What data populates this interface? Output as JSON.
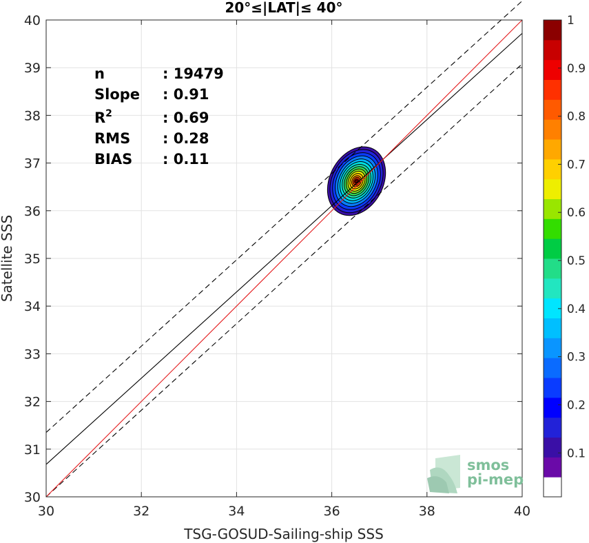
{
  "chart_data": {
    "type": "scatter",
    "title": "20°≤|LAT|≤ 40°",
    "xlabel": "TSG-GOSUD-Sailing-ship SSS",
    "ylabel": "Satellite SSS",
    "xlim": [
      30,
      40
    ],
    "ylim": [
      30,
      40
    ],
    "xticks": [
      "30",
      "32",
      "34",
      "36",
      "38",
      "40"
    ],
    "yticks": [
      "30",
      "31",
      "32",
      "33",
      "34",
      "35",
      "36",
      "37",
      "38",
      "39",
      "40"
    ],
    "grid": true,
    "stats": [
      {
        "label": "n",
        "value": ": 19479"
      },
      {
        "label": "Slope",
        "value": ": 0.91"
      },
      {
        "label": "R",
        "sup": "2",
        "value": ": 0.69"
      },
      {
        "label": "RMS",
        "value": ": 0.28"
      },
      {
        "label": "BIAS",
        "value": ": 0.11"
      }
    ],
    "lines": {
      "identity": {
        "x": [
          30,
          40
        ],
        "y": [
          30,
          40
        ],
        "color": "#e41a1c"
      },
      "fit": {
        "x": [
          30,
          40
        ],
        "y": [
          30.68,
          39.72
        ],
        "color": "#000000"
      },
      "fit_upper": {
        "x": [
          30,
          40
        ],
        "y": [
          31.35,
          40.4
        ],
        "color": "#000000",
        "dash": true
      },
      "fit_lower": {
        "x": [
          30,
          40
        ],
        "y": [
          30.0,
          39.08
        ],
        "color": "#000000",
        "dash": true
      }
    },
    "density": {
      "center": [
        36.52,
        36.62
      ],
      "levels": [
        {
          "level": 0.05,
          "rx": 0.56,
          "ry": 0.76,
          "color": "#3a0fa6"
        },
        {
          "level": 0.15,
          "rx": 0.51,
          "ry": 0.7,
          "color": "#2222d8"
        },
        {
          "level": 0.25,
          "rx": 0.46,
          "ry": 0.63,
          "color": "#0a3cff"
        },
        {
          "level": 0.3,
          "rx": 0.41,
          "ry": 0.56,
          "color": "#0a7bff"
        },
        {
          "level": 0.35,
          "rx": 0.36,
          "ry": 0.49,
          "color": "#00b8ff"
        },
        {
          "level": 0.4,
          "rx": 0.32,
          "ry": 0.43,
          "color": "#00e0e0"
        },
        {
          "level": 0.45,
          "rx": 0.28,
          "ry": 0.37,
          "color": "#22ddaa"
        },
        {
          "level": 0.5,
          "rx": 0.24,
          "ry": 0.32,
          "color": "#33dd55"
        },
        {
          "level": 0.55,
          "rx": 0.2,
          "ry": 0.27,
          "color": "#88e022"
        },
        {
          "level": 0.6,
          "rx": 0.165,
          "ry": 0.22,
          "color": "#eeee00"
        },
        {
          "level": 0.7,
          "rx": 0.13,
          "ry": 0.17,
          "color": "#ffc000"
        },
        {
          "level": 0.8,
          "rx": 0.095,
          "ry": 0.12,
          "color": "#ff7a00"
        },
        {
          "level": 0.85,
          "rx": 0.065,
          "ry": 0.085,
          "color": "#ff3300"
        },
        {
          "level": 0.9,
          "rx": 0.04,
          "ry": 0.05,
          "color": "#dd0000"
        },
        {
          "level": 1.0,
          "rx": 0.022,
          "ry": 0.028,
          "color": "#8b0000"
        }
      ]
    },
    "colorbar": {
      "ticks": [
        "0.1",
        "0.2",
        "0.3",
        "0.4",
        "0.5",
        "0.6",
        "0.7",
        "0.8",
        "0.9",
        "1"
      ],
      "colors": [
        "#ffffff",
        "#6a0aa8",
        "#3a0fa6",
        "#2222d8",
        "#0000ff",
        "#0a3cff",
        "#0a6bff",
        "#0a95ff",
        "#00bfff",
        "#00e5ff",
        "#22e6c0",
        "#22dd88",
        "#00cc44",
        "#33dd00",
        "#99e600",
        "#eeee00",
        "#ffd000",
        "#ffa800",
        "#ff8000",
        "#ff5a00",
        "#ff3000",
        "#ee0000",
        "#c80000",
        "#8b0000"
      ]
    }
  },
  "logo": {
    "line1": "smos",
    "line2": "pi-mep"
  }
}
